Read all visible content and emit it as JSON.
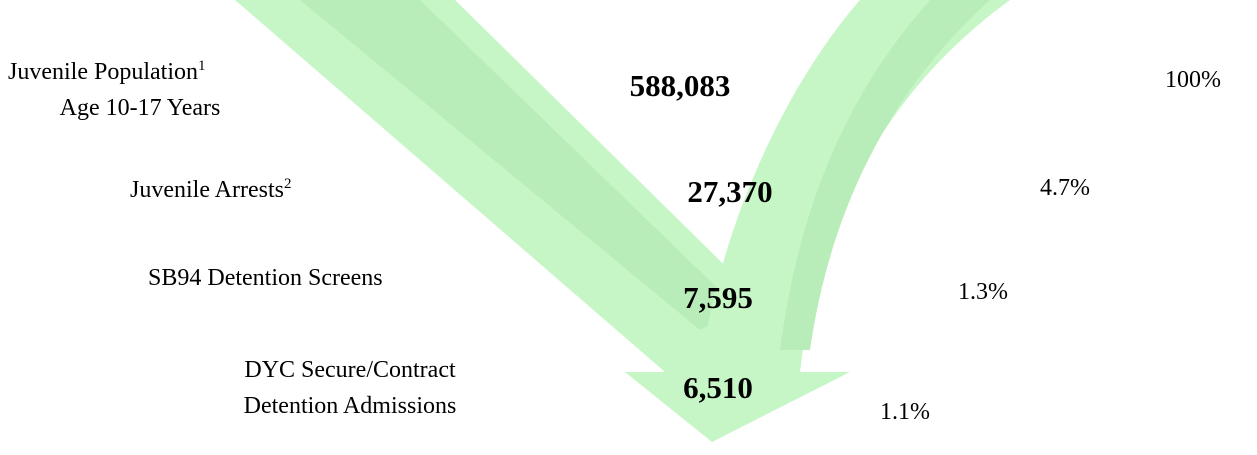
{
  "rows": [
    {
      "label": [
        "Juvenile Population",
        "Age 10-17 Years"
      ],
      "note": "1",
      "count": "588,083",
      "percent": "100%"
    },
    {
      "label": [
        "Juvenile Arrests"
      ],
      "note": "2",
      "count": "27,370",
      "percent": "4.7%"
    },
    {
      "label": [
        "SB94 Detention Screens"
      ],
      "count": "7,595",
      "percent": "1.3%"
    },
    {
      "label": [
        "DYC Secure/Contract",
        "Detention Admissions"
      ],
      "count": "6,510",
      "percent": "1.1%"
    }
  ]
}
